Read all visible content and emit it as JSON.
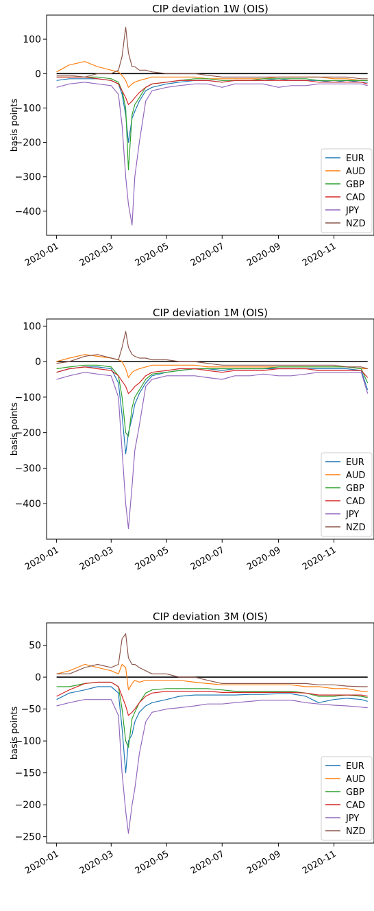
{
  "colors": {
    "EUR": "#1f77b4",
    "AUD": "#ff7f0e",
    "GBP": "#2ca02c",
    "CAD": "#d62728",
    "JPY": "#9467bd",
    "NZD": "#8c564b",
    "zero_line": "#000000"
  },
  "chart_data": [
    {
      "type": "line",
      "title": "CIP deviation 1W (OIS)",
      "xlabel": "",
      "ylabel": "basis points",
      "ylim": [
        -470,
        170
      ],
      "yticks": [
        100,
        0,
        -100,
        -200,
        -300,
        -400
      ],
      "xticks": [
        "2020-01",
        "2020-03",
        "2020-05",
        "2020-07",
        "2020-09",
        "2020-11"
      ],
      "xlim": [
        "2019-12-21",
        "2020-12-15"
      ],
      "legend_position": "lower right",
      "grid": false,
      "x": [
        "2020-01-01",
        "2020-01-15",
        "2020-02-01",
        "2020-02-15",
        "2020-03-01",
        "2020-03-09",
        "2020-03-13",
        "2020-03-17",
        "2020-03-20",
        "2020-03-24",
        "2020-03-27",
        "2020-04-01",
        "2020-04-08",
        "2020-04-15",
        "2020-05-01",
        "2020-05-15",
        "2020-06-01",
        "2020-06-15",
        "2020-07-01",
        "2020-07-15",
        "2020-08-01",
        "2020-08-15",
        "2020-09-01",
        "2020-09-15",
        "2020-10-01",
        "2020-10-15",
        "2020-11-01",
        "2020-11-15",
        "2020-12-01",
        "2020-12-08"
      ],
      "series": [
        {
          "name": "EUR",
          "values": [
            -20,
            -15,
            -15,
            -15,
            -20,
            -30,
            -60,
            -120,
            -200,
            -130,
            -110,
            -80,
            -50,
            -40,
            -30,
            -25,
            -20,
            -20,
            -25,
            -20,
            -20,
            -20,
            -15,
            -20,
            -20,
            -20,
            -25,
            -20,
            -25,
            -25
          ]
        },
        {
          "name": "AUD",
          "values": [
            5,
            25,
            35,
            20,
            10,
            5,
            -5,
            -20,
            -40,
            -30,
            -25,
            -20,
            -15,
            -10,
            -10,
            -10,
            -10,
            -15,
            -15,
            -15,
            -15,
            -15,
            -10,
            -10,
            -10,
            -10,
            -15,
            -15,
            -20,
            -20
          ]
        },
        {
          "name": "GBP",
          "values": [
            -10,
            -10,
            -10,
            -10,
            -15,
            -25,
            -50,
            -100,
            -280,
            -120,
            -90,
            -70,
            -40,
            -30,
            -25,
            -20,
            -15,
            -15,
            -20,
            -20,
            -20,
            -15,
            -15,
            -15,
            -15,
            -20,
            -20,
            -20,
            -20,
            -20
          ]
        },
        {
          "name": "CAD",
          "values": [
            -10,
            -10,
            -10,
            -15,
            -20,
            -30,
            -50,
            -70,
            -90,
            -80,
            -70,
            -55,
            -40,
            -30,
            -25,
            -20,
            -20,
            -20,
            -25,
            -20,
            -20,
            -20,
            -20,
            -20,
            -20,
            -25,
            -25,
            -25,
            -25,
            -30
          ]
        },
        {
          "name": "JPY",
          "values": [
            -40,
            -30,
            -25,
            -30,
            -35,
            -60,
            -150,
            -300,
            -380,
            -440,
            -300,
            -200,
            -80,
            -50,
            -40,
            -35,
            -30,
            -30,
            -40,
            -30,
            -30,
            -30,
            -40,
            -35,
            -35,
            -30,
            -30,
            -30,
            -30,
            -35
          ]
        },
        {
          "name": "NZD",
          "values": [
            -5,
            -5,
            -10,
            0,
            0,
            10,
            50,
            135,
            60,
            20,
            20,
            10,
            10,
            5,
            0,
            0,
            0,
            -5,
            -10,
            -10,
            -10,
            -10,
            -10,
            -10,
            -10,
            -10,
            -10,
            -10,
            -15,
            -15
          ]
        }
      ]
    },
    {
      "type": "line",
      "title": "CIP deviation 1M (OIS)",
      "xlabel": "",
      "ylabel": "basis points",
      "ylim": [
        -500,
        120
      ],
      "yticks": [
        100,
        0,
        -100,
        -200,
        -300,
        -400
      ],
      "xticks": [
        "2020-01",
        "2020-03",
        "2020-05",
        "2020-07",
        "2020-09",
        "2020-11"
      ],
      "xlim": [
        "2019-12-21",
        "2020-12-15"
      ],
      "legend_position": "lower right",
      "grid": false,
      "x": [
        "2020-01-01",
        "2020-01-15",
        "2020-02-01",
        "2020-02-15",
        "2020-03-01",
        "2020-03-09",
        "2020-03-13",
        "2020-03-17",
        "2020-03-20",
        "2020-03-24",
        "2020-03-27",
        "2020-04-01",
        "2020-04-08",
        "2020-04-15",
        "2020-05-01",
        "2020-05-15",
        "2020-06-01",
        "2020-06-15",
        "2020-07-01",
        "2020-07-15",
        "2020-08-01",
        "2020-08-15",
        "2020-09-01",
        "2020-09-15",
        "2020-10-01",
        "2020-10-15",
        "2020-11-01",
        "2020-11-15",
        "2020-12-01",
        "2020-12-08"
      ],
      "series": [
        {
          "name": "EUR",
          "values": [
            -30,
            -20,
            -15,
            -15,
            -20,
            -60,
            -150,
            -260,
            -200,
            -160,
            -120,
            -90,
            -60,
            -40,
            -30,
            -25,
            -20,
            -20,
            -25,
            -20,
            -20,
            -20,
            -20,
            -20,
            -20,
            -20,
            -20,
            -20,
            -25,
            -80
          ]
        },
        {
          "name": "AUD",
          "values": [
            0,
            10,
            20,
            15,
            10,
            5,
            0,
            -20,
            -45,
            -30,
            -25,
            -20,
            -15,
            -10,
            -10,
            -10,
            -10,
            -15,
            -15,
            -15,
            -15,
            -15,
            -15,
            -15,
            -15,
            -15,
            -15,
            -15,
            -20,
            -20
          ]
        },
        {
          "name": "GBP",
          "values": [
            -20,
            -15,
            -10,
            -10,
            -15,
            -40,
            -100,
            -200,
            -210,
            -130,
            -100,
            -80,
            -50,
            -35,
            -30,
            -25,
            -20,
            -20,
            -20,
            -20,
            -20,
            -20,
            -15,
            -15,
            -15,
            -15,
            -15,
            -15,
            -20,
            -60
          ]
        },
        {
          "name": "CAD",
          "values": [
            -30,
            -20,
            -15,
            -20,
            -25,
            -40,
            -55,
            -70,
            -90,
            -80,
            -70,
            -60,
            -40,
            -30,
            -25,
            -20,
            -20,
            -25,
            -30,
            -25,
            -25,
            -25,
            -20,
            -20,
            -20,
            -25,
            -25,
            -25,
            -25,
            -45
          ]
        },
        {
          "name": "JPY",
          "values": [
            -50,
            -40,
            -30,
            -35,
            -40,
            -100,
            -250,
            -400,
            -470,
            -350,
            -250,
            -180,
            -70,
            -50,
            -40,
            -40,
            -40,
            -45,
            -50,
            -40,
            -40,
            -35,
            -40,
            -40,
            -35,
            -30,
            -30,
            -30,
            -30,
            -90
          ]
        },
        {
          "name": "NZD",
          "values": [
            -5,
            0,
            15,
            20,
            10,
            5,
            40,
            85,
            40,
            20,
            15,
            10,
            10,
            5,
            5,
            0,
            0,
            -5,
            -10,
            -10,
            -10,
            -10,
            -10,
            -10,
            -10,
            -10,
            -10,
            -15,
            -15,
            -20
          ]
        }
      ]
    },
    {
      "type": "line",
      "title": "CIP deviation 3M (OIS)",
      "xlabel": "",
      "ylabel": "basis points",
      "ylim": [
        -260,
        85
      ],
      "yticks": [
        50,
        0,
        -50,
        -100,
        -150,
        -200,
        -250
      ],
      "xticks": [
        "2020-01",
        "2020-03",
        "2020-05",
        "2020-07",
        "2020-09",
        "2020-11"
      ],
      "xlim": [
        "2019-12-21",
        "2020-12-15"
      ],
      "legend_position": "lower right",
      "grid": false,
      "x": [
        "2020-01-01",
        "2020-01-15",
        "2020-02-01",
        "2020-02-15",
        "2020-03-01",
        "2020-03-09",
        "2020-03-13",
        "2020-03-17",
        "2020-03-20",
        "2020-03-24",
        "2020-03-27",
        "2020-04-01",
        "2020-04-08",
        "2020-04-15",
        "2020-05-01",
        "2020-05-15",
        "2020-06-01",
        "2020-06-15",
        "2020-07-01",
        "2020-07-15",
        "2020-08-01",
        "2020-08-15",
        "2020-09-01",
        "2020-09-15",
        "2020-10-01",
        "2020-10-15",
        "2020-11-01",
        "2020-11-15",
        "2020-12-01",
        "2020-12-08"
      ],
      "series": [
        {
          "name": "EUR",
          "values": [
            -35,
            -25,
            -20,
            -15,
            -15,
            -25,
            -80,
            -150,
            -100,
            -90,
            -70,
            -55,
            -45,
            -40,
            -35,
            -30,
            -28,
            -28,
            -28,
            -28,
            -27,
            -27,
            -26,
            -26,
            -30,
            -40,
            -35,
            -33,
            -35,
            -38
          ]
        },
        {
          "name": "AUD",
          "values": [
            5,
            10,
            20,
            15,
            10,
            5,
            20,
            15,
            -20,
            -10,
            -5,
            -8,
            -5,
            -5,
            -5,
            -5,
            -8,
            -10,
            -12,
            -12,
            -12,
            -12,
            -12,
            -12,
            -15,
            -15,
            -18,
            -18,
            -22,
            -22
          ]
        },
        {
          "name": "GBP",
          "values": [
            -15,
            -15,
            -10,
            -8,
            -8,
            -15,
            -50,
            -100,
            -110,
            -65,
            -55,
            -40,
            -25,
            -20,
            -18,
            -18,
            -18,
            -18,
            -20,
            -22,
            -22,
            -22,
            -22,
            -22,
            -25,
            -30,
            -30,
            -28,
            -30,
            -32
          ]
        },
        {
          "name": "CAD",
          "values": [
            -30,
            -20,
            -10,
            -8,
            -8,
            -15,
            -30,
            -45,
            -60,
            -55,
            -50,
            -40,
            -30,
            -25,
            -22,
            -22,
            -22,
            -22,
            -24,
            -24,
            -24,
            -24,
            -24,
            -24,
            -25,
            -28,
            -28,
            -28,
            -28,
            -30
          ]
        },
        {
          "name": "JPY",
          "values": [
            -45,
            -40,
            -35,
            -35,
            -35,
            -60,
            -150,
            -210,
            -245,
            -200,
            -175,
            -120,
            -70,
            -55,
            -50,
            -48,
            -45,
            -42,
            -42,
            -40,
            -38,
            -36,
            -36,
            -36,
            -40,
            -42,
            -44,
            -45,
            -47,
            -48
          ]
        },
        {
          "name": "NZD",
          "values": [
            5,
            5,
            15,
            20,
            15,
            20,
            60,
            68,
            30,
            20,
            20,
            15,
            10,
            5,
            5,
            0,
            0,
            -5,
            -10,
            -10,
            -10,
            -10,
            -10,
            -10,
            -10,
            -12,
            -12,
            -14,
            -15,
            -15
          ]
        }
      ]
    }
  ]
}
